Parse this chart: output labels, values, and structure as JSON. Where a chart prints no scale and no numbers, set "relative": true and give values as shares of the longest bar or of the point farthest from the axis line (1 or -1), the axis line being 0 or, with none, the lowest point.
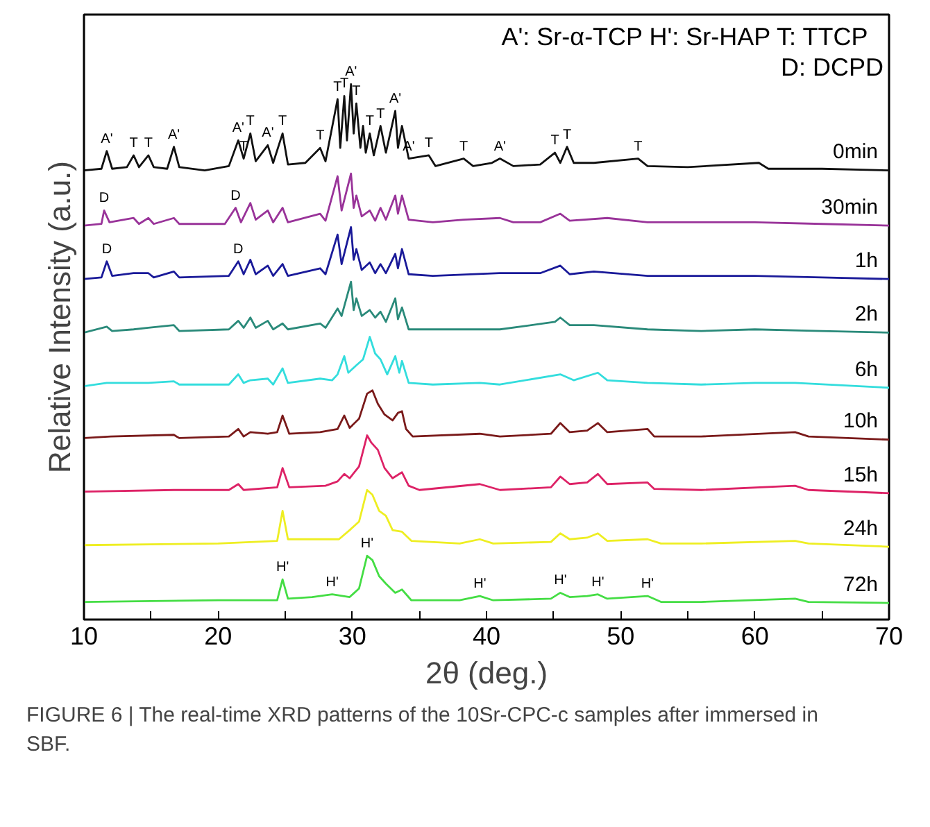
{
  "chart_data": {
    "type": "line",
    "relative": true,
    "xlabel": "2θ (deg.)",
    "ylabel": "Relative Intensity (a.u.)",
    "xlim": [
      10,
      70
    ],
    "xticks": [
      10,
      {
        "value": 15,
        "label": null
      },
      20,
      {
        "value": 25,
        "label": null
      },
      30,
      {
        "value": 35,
        "label": null
      },
      40,
      {
        "value": 45,
        "label": null
      },
      50,
      {
        "value": 55,
        "label": null
      },
      60,
      {
        "value": 65,
        "label": null
      },
      70
    ],
    "series": [
      {
        "name": "0min",
        "color": "#111111",
        "x": [
          10,
          11.3,
          11.7,
          12.1,
          13.2,
          13.7,
          14.1,
          14.8,
          15.2,
          16.2,
          16.7,
          17.1,
          19,
          20.8,
          21.5,
          21.9,
          22.4,
          22.8,
          23.7,
          24.1,
          24.8,
          25.2,
          26.5,
          27.6,
          28.0,
          28.9,
          29.1,
          29.4,
          29.6,
          29.9,
          30.1,
          30.3,
          30.6,
          30.8,
          31.0,
          31.3,
          31.6,
          32.1,
          32.5,
          33.2,
          33.4,
          33.7,
          34.2,
          35.7,
          36.2,
          38.3,
          39,
          40.4,
          41.0,
          42,
          44,
          45.1,
          45.5,
          46.0,
          46.5,
          48,
          51.3,
          52,
          55,
          60.3,
          61,
          65,
          70
        ],
        "values": [
          0.839,
          0.842,
          0.875,
          0.842,
          0.845,
          0.867,
          0.845,
          0.867,
          0.845,
          0.842,
          0.883,
          0.845,
          0.839,
          0.847,
          0.895,
          0.861,
          0.908,
          0.856,
          0.886,
          0.853,
          0.908,
          0.85,
          0.853,
          0.881,
          0.856,
          0.972,
          0.881,
          0.978,
          0.895,
          1.0,
          0.908,
          0.964,
          0.881,
          0.922,
          0.872,
          0.908,
          0.867,
          0.922,
          0.872,
          0.95,
          0.881,
          0.922,
          0.861,
          0.867,
          0.847,
          0.861,
          0.847,
          0.853,
          0.861,
          0.847,
          0.85,
          0.872,
          0.853,
          0.883,
          0.853,
          0.853,
          0.861,
          0.847,
          0.845,
          0.853,
          0.842,
          0.842,
          0.839
        ]
      },
      {
        "name": "30min",
        "color": "#993399",
        "x": [
          10,
          11.3,
          11.5,
          11.9,
          13.7,
          14.1,
          14.8,
          15.2,
          16.7,
          17.1,
          20.5,
          21.3,
          21.7,
          22.4,
          22.8,
          23.7,
          24.1,
          24.8,
          25.2,
          27.6,
          28.0,
          28.9,
          29.2,
          29.9,
          30.1,
          30.3,
          30.7,
          31.3,
          31.7,
          32.1,
          32.5,
          33.2,
          33.4,
          33.7,
          34.2,
          36,
          38.3,
          41.0,
          42,
          44,
          45.5,
          46.2,
          49,
          52,
          56,
          60,
          65,
          70
        ],
        "values": [
          0.736,
          0.739,
          0.764,
          0.742,
          0.75,
          0.739,
          0.75,
          0.739,
          0.75,
          0.739,
          0.739,
          0.769,
          0.742,
          0.778,
          0.747,
          0.764,
          0.742,
          0.769,
          0.742,
          0.758,
          0.745,
          0.828,
          0.764,
          0.833,
          0.769,
          0.792,
          0.753,
          0.764,
          0.745,
          0.769,
          0.747,
          0.792,
          0.758,
          0.792,
          0.747,
          0.742,
          0.747,
          0.75,
          0.742,
          0.742,
          0.758,
          0.745,
          0.75,
          0.742,
          0.742,
          0.742,
          0.739,
          0.736
        ]
      },
      {
        "name": "1h",
        "color": "#1a1a99",
        "x": [
          10,
          11.3,
          11.7,
          12.1,
          13.7,
          14.8,
          15.2,
          16.7,
          17.1,
          20.8,
          21.5,
          21.9,
          22.4,
          22.8,
          23.7,
          24.1,
          24.8,
          25.2,
          27.6,
          28.0,
          28.9,
          29.2,
          29.9,
          30.1,
          30.3,
          30.7,
          31.3,
          31.7,
          32.1,
          32.5,
          33.2,
          33.4,
          33.7,
          34.2,
          36,
          41,
          44,
          45.5,
          46.2,
          48,
          52,
          56,
          60,
          65,
          70
        ],
        "values": [
          0.636,
          0.639,
          0.669,
          0.642,
          0.647,
          0.647,
          0.639,
          0.65,
          0.639,
          0.642,
          0.669,
          0.645,
          0.672,
          0.645,
          0.661,
          0.642,
          0.664,
          0.642,
          0.656,
          0.645,
          0.719,
          0.664,
          0.733,
          0.672,
          0.692,
          0.653,
          0.667,
          0.647,
          0.664,
          0.647,
          0.683,
          0.656,
          0.692,
          0.645,
          0.642,
          0.647,
          0.647,
          0.661,
          0.645,
          0.65,
          0.642,
          0.642,
          0.642,
          0.639,
          0.636
        ]
      },
      {
        "name": "2h",
        "color": "#2a8a7a",
        "x": [
          10,
          11.7,
          12.1,
          13.7,
          14.8,
          16.7,
          17.1,
          20.8,
          21.5,
          21.9,
          22.4,
          22.8,
          23.7,
          24.1,
          24.8,
          25.2,
          27.6,
          28.0,
          28.9,
          29.2,
          29.9,
          30.1,
          30.3,
          30.7,
          31.3,
          31.7,
          32.1,
          32.5,
          33.2,
          33.4,
          33.7,
          34.2,
          36,
          41,
          45.1,
          45.5,
          46.2,
          48,
          52,
          56,
          60,
          65,
          70
        ],
        "values": [
          0.536,
          0.547,
          0.539,
          0.542,
          0.545,
          0.55,
          0.539,
          0.542,
          0.558,
          0.545,
          0.564,
          0.545,
          0.558,
          0.542,
          0.553,
          0.542,
          0.553,
          0.545,
          0.581,
          0.567,
          0.631,
          0.578,
          0.6,
          0.567,
          0.578,
          0.564,
          0.575,
          0.556,
          0.6,
          0.561,
          0.583,
          0.542,
          0.542,
          0.542,
          0.556,
          0.564,
          0.55,
          0.55,
          0.542,
          0.539,
          0.542,
          0.539,
          0.536
        ]
      },
      {
        "name": "6h",
        "color": "#33dddd",
        "x": [
          10,
          11.7,
          14.8,
          16.7,
          17.1,
          20.8,
          21.5,
          21.9,
          22.4,
          23.7,
          24.1,
          24.8,
          25.2,
          27.6,
          28.5,
          28.9,
          29.4,
          29.7,
          30.3,
          30.8,
          31.3,
          31.7,
          32.1,
          32.6,
          33.2,
          33.5,
          33.7,
          34.2,
          36,
          39.5,
          41,
          45.5,
          46.5,
          48.3,
          49,
          52,
          56,
          60,
          63,
          70
        ],
        "values": [
          0.436,
          0.442,
          0.442,
          0.445,
          0.439,
          0.439,
          0.458,
          0.442,
          0.447,
          0.45,
          0.439,
          0.469,
          0.442,
          0.45,
          0.447,
          0.458,
          0.492,
          0.461,
          0.475,
          0.486,
          0.528,
          0.497,
          0.486,
          0.458,
          0.492,
          0.461,
          0.483,
          0.442,
          0.439,
          0.442,
          0.439,
          0.458,
          0.447,
          0.461,
          0.447,
          0.442,
          0.439,
          0.442,
          0.442,
          0.433
        ]
      },
      {
        "name": "10h",
        "color": "#7a1a1a",
        "x": [
          10,
          12,
          16.7,
          17.1,
          20.8,
          21.5,
          21.9,
          22.4,
          23.7,
          24.4,
          24.8,
          25.3,
          27.6,
          28.9,
          29.4,
          29.8,
          30.5,
          31.1,
          31.5,
          31.9,
          32.4,
          33.0,
          33.4,
          33.7,
          34.0,
          34.5,
          39.5,
          41,
          44.8,
          45.5,
          46.2,
          47.5,
          48.3,
          49,
          52,
          52.5,
          56,
          63,
          64,
          70
        ],
        "values": [
          0.339,
          0.342,
          0.345,
          0.339,
          0.342,
          0.356,
          0.342,
          0.35,
          0.347,
          0.35,
          0.381,
          0.347,
          0.35,
          0.356,
          0.381,
          0.358,
          0.375,
          0.422,
          0.428,
          0.403,
          0.383,
          0.372,
          0.386,
          0.389,
          0.356,
          0.342,
          0.347,
          0.342,
          0.347,
          0.367,
          0.35,
          0.353,
          0.367,
          0.35,
          0.356,
          0.342,
          0.342,
          0.35,
          0.342,
          0.336
        ]
      },
      {
        "name": "15h",
        "color": "#dd2266",
        "x": [
          10,
          16.7,
          20.8,
          21.5,
          21.9,
          24.4,
          24.8,
          25.3,
          28,
          28.9,
          29.4,
          29.8,
          30.5,
          31.1,
          31.4,
          31.9,
          32.4,
          33.0,
          33.7,
          34.2,
          35,
          39.5,
          41,
          44.8,
          45.5,
          46.2,
          47.5,
          48.3,
          49,
          52,
          52.5,
          56,
          63,
          64,
          70
        ],
        "values": [
          0.239,
          0.242,
          0.242,
          0.253,
          0.242,
          0.247,
          0.283,
          0.247,
          0.25,
          0.258,
          0.272,
          0.264,
          0.286,
          0.344,
          0.331,
          0.317,
          0.283,
          0.264,
          0.275,
          0.25,
          0.242,
          0.253,
          0.242,
          0.247,
          0.267,
          0.253,
          0.256,
          0.272,
          0.253,
          0.256,
          0.244,
          0.242,
          0.25,
          0.242,
          0.236
        ]
      },
      {
        "name": "24h",
        "color": "#eeee22",
        "x": [
          10,
          20,
          24.4,
          24.8,
          25.2,
          27,
          29,
          29.8,
          30.5,
          31.1,
          31.5,
          32.0,
          32.5,
          33.0,
          33.7,
          34.4,
          38,
          39.5,
          40.5,
          44.8,
          45.5,
          46.2,
          47.5,
          48.3,
          49,
          52,
          53,
          56,
          63,
          64,
          70
        ],
        "values": [
          0.139,
          0.142,
          0.147,
          0.203,
          0.15,
          0.15,
          0.15,
          0.167,
          0.183,
          0.242,
          0.233,
          0.203,
          0.194,
          0.167,
          0.164,
          0.147,
          0.142,
          0.15,
          0.142,
          0.145,
          0.161,
          0.15,
          0.153,
          0.161,
          0.147,
          0.15,
          0.142,
          0.142,
          0.147,
          0.142,
          0.136
        ]
      },
      {
        "name": "72h",
        "color": "#44dd44",
        "x": [
          10,
          20,
          24.4,
          24.8,
          25.2,
          27,
          28.5,
          29.8,
          30.5,
          31.1,
          31.5,
          32.0,
          32.5,
          33.2,
          33.7,
          34.4,
          38,
          39.5,
          40.5,
          44.8,
          45.5,
          46.2,
          47.5,
          48.3,
          49,
          52,
          53,
          56,
          63,
          64,
          70
        ],
        "values": [
          0.033,
          0.036,
          0.036,
          0.075,
          0.039,
          0.042,
          0.047,
          0.042,
          0.058,
          0.119,
          0.111,
          0.081,
          0.067,
          0.05,
          0.056,
          0.036,
          0.036,
          0.044,
          0.036,
          0.039,
          0.05,
          0.042,
          0.044,
          0.047,
          0.039,
          0.044,
          0.033,
          0.033,
          0.039,
          0.033,
          0.031
        ]
      }
    ],
    "annotations": [
      "A': Sr-α-TCP  H': Sr-HAP  T: TTCP",
      "D: DCPD",
      {
        "text": "A'",
        "x": 11.7,
        "y": 0.875
      },
      {
        "text": "T",
        "x": 13.7,
        "y": 0.867
      },
      {
        "text": "T",
        "x": 14.8,
        "y": 0.867
      },
      {
        "text": "A'",
        "x": 16.7,
        "y": 0.883
      },
      {
        "text": "T",
        "x": 21.9,
        "y": 0.861
      },
      {
        "text": "A'",
        "x": 21.5,
        "y": 0.895
      },
      {
        "text": "T",
        "x": 22.4,
        "y": 0.908
      },
      {
        "text": "A'",
        "x": 23.7,
        "y": 0.886
      },
      {
        "text": "T",
        "x": 24.8,
        "y": 0.908
      },
      {
        "text": "T",
        "x": 27.6,
        "y": 0.881
      },
      {
        "text": "T",
        "x": 28.9,
        "y": 0.972
      },
      {
        "text": "T",
        "x": 29.4,
        "y": 0.978
      },
      {
        "text": "A'",
        "x": 29.9,
        "y": 1.0
      },
      {
        "text": "T",
        "x": 30.3,
        "y": 0.964
      },
      {
        "text": "T",
        "x": 31.3,
        "y": 0.908
      },
      {
        "text": "T",
        "x": 32.1,
        "y": 0.922
      },
      {
        "text": "A'",
        "x": 33.2,
        "y": 0.95
      },
      {
        "text": "A'",
        "x": 34.2,
        "y": 0.861
      },
      {
        "text": "T",
        "x": 35.7,
        "y": 0.867
      },
      {
        "text": "T",
        "x": 38.3,
        "y": 0.861
      },
      {
        "text": "A'",
        "x": 41.0,
        "y": 0.861
      },
      {
        "text": "T",
        "x": 45.1,
        "y": 0.872
      },
      {
        "text": "T",
        "x": 46.0,
        "y": 0.883
      },
      {
        "text": "T",
        "x": 51.3,
        "y": 0.861
      },
      {
        "text": "D",
        "x": 11.5,
        "y": 0.764
      },
      {
        "text": "D",
        "x": 21.3,
        "y": 0.769
      },
      {
        "text": "D",
        "x": 11.7,
        "y": 0.669
      },
      {
        "text": "D",
        "x": 21.5,
        "y": 0.669
      },
      {
        "text": "H'",
        "x": 24.8,
        "y": 0.075
      },
      {
        "text": "H'",
        "x": 28.5,
        "y": 0.047
      },
      {
        "text": "H'",
        "x": 31.1,
        "y": 0.119
      },
      {
        "text": "H'",
        "x": 39.5,
        "y": 0.044
      },
      {
        "text": "H'",
        "x": 45.5,
        "y": 0.05
      },
      {
        "text": "H'",
        "x": 48.3,
        "y": 0.047
      },
      {
        "text": "H'",
        "x": 52.0,
        "y": 0.044
      },
      "FIGURE 6 | The real-time XRD patterns of the 10Sr-CPC-c samples after immersed in SBF."
    ]
  }
}
